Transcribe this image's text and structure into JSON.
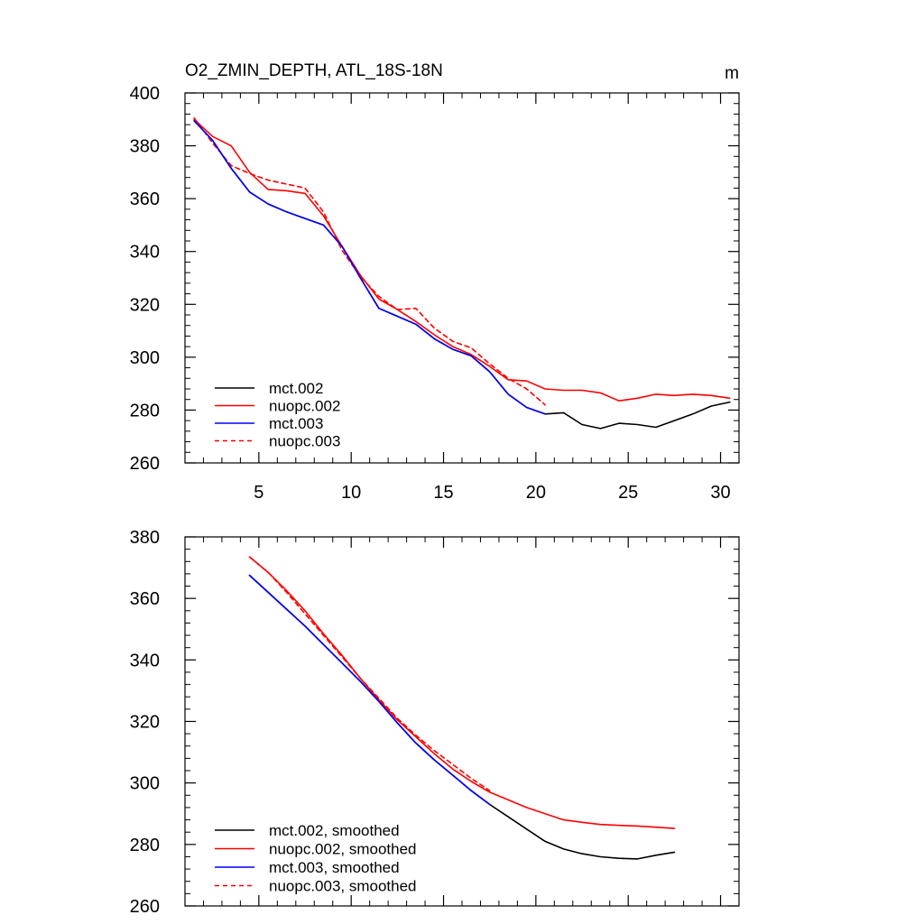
{
  "chart_data": [
    {
      "type": "line",
      "title": "O2_ZMIN_DEPTH, ATL_18S-18N",
      "units": "m",
      "xlim": [
        1,
        31
      ],
      "ylim": [
        260,
        400
      ],
      "x_ticks": [
        5,
        10,
        15,
        20,
        25,
        30
      ],
      "y_ticks": [
        260,
        280,
        300,
        320,
        340,
        360,
        380,
        400
      ],
      "x_tick_labels": [
        "5",
        "10",
        "15",
        "20",
        "25",
        "30"
      ],
      "y_tick_labels": [
        "260",
        "280",
        "300",
        "320",
        "340",
        "360",
        "380",
        "400"
      ],
      "legend_position": "bottom-left",
      "series": [
        {
          "name": "mct.002",
          "color": "#000000",
          "dash": "solid",
          "x": [
            1.5,
            2.5,
            3.5,
            4.5,
            5.5,
            6.5,
            7.5,
            8.5,
            9.5,
            10.5,
            11.5,
            12.5,
            13.5,
            14.5,
            15.5,
            16.5,
            17.5,
            18.5,
            19.5,
            20.5,
            21.5,
            22.5,
            23.5,
            24.5,
            25.5,
            26.5,
            27.5,
            28.5,
            29.5,
            30.5
          ],
          "values": [
            389.5,
            382,
            371.5,
            362.5,
            358,
            355,
            352.5,
            350,
            342,
            330,
            318.5,
            315.5,
            312.5,
            307,
            303,
            300.5,
            294.5,
            286,
            281,
            278.5,
            279,
            274.5,
            273,
            275,
            274.5,
            273.5,
            276,
            278.5,
            281.5,
            283
          ]
        },
        {
          "name": "nuopc.002",
          "color": "#ff0000",
          "dash": "solid",
          "x": [
            1.5,
            2.5,
            3.5,
            4.5,
            5.5,
            6.5,
            7.5,
            8.5,
            9.5,
            10.5,
            11.5,
            12.5,
            13.5,
            14.5,
            15.5,
            16.5,
            17.5,
            18.5,
            19.5,
            20.5,
            21.5,
            22.5,
            23.5,
            24.5,
            25.5,
            26.5,
            27.5,
            28.5,
            29.5,
            30.5
          ],
          "values": [
            390,
            383.5,
            380,
            370,
            363.5,
            363,
            362,
            353.5,
            342,
            331,
            322,
            318,
            313.5,
            308.5,
            304,
            301,
            296.5,
            291.5,
            291,
            288,
            287.5,
            287.5,
            286.5,
            283.5,
            284.5,
            286,
            285.5,
            286,
            285.5,
            284.5
          ]
        },
        {
          "name": "mct.003",
          "color": "#0000ff",
          "dash": "solid",
          "x": [
            1.5,
            2.5,
            3.5,
            4.5,
            5.5,
            6.5,
            7.5,
            8.5,
            9.5,
            10.5,
            11.5,
            12.5,
            13.5,
            14.5,
            15.5,
            16.5,
            17.5,
            18.5,
            19.5,
            20.5
          ],
          "values": [
            389.5,
            382,
            371.5,
            362.5,
            358,
            355,
            352.5,
            350,
            342,
            330,
            318.5,
            315.5,
            312.5,
            307,
            303,
            300.5,
            294.5,
            286,
            281,
            278.5
          ]
        },
        {
          "name": "nuopc.003",
          "color": "#ff0000",
          "dash": "dashed",
          "x": [
            1.5,
            2.5,
            3.5,
            4.5,
            5.5,
            6.5,
            7.5,
            8.5,
            9.5,
            10.5,
            11.5,
            12.5,
            13.5,
            14.5,
            15.5,
            16.5,
            17.5,
            18.5,
            19.5,
            20.5
          ],
          "values": [
            390.5,
            381,
            372.5,
            369.5,
            367,
            365.5,
            364,
            355,
            340.5,
            330.5,
            323,
            318,
            318.5,
            311,
            306,
            303.5,
            297.5,
            292,
            288,
            282
          ]
        }
      ]
    },
    {
      "type": "line",
      "title": "",
      "xlim": [
        1,
        31
      ],
      "ylim": [
        260,
        380
      ],
      "x_ticks": [
        5,
        10,
        15,
        20,
        25,
        30
      ],
      "y_ticks": [
        260,
        280,
        300,
        320,
        340,
        360,
        380
      ],
      "x_tick_labels": [],
      "y_tick_labels": [
        "260",
        "280",
        "300",
        "320",
        "340",
        "360",
        "380"
      ],
      "legend_position": "bottom-left",
      "series": [
        {
          "name": "mct.002, smoothed",
          "color": "#000000",
          "dash": "solid",
          "x": [
            4.5,
            5.5,
            6.5,
            7.5,
            8.5,
            9.5,
            10.5,
            11.5,
            12.5,
            13.5,
            14.5,
            15.5,
            16.5,
            17.5,
            18.5,
            19.5,
            20.5,
            21.5,
            22.5,
            23.5,
            24.5,
            25.5,
            26.5,
            27.5
          ],
          "values": [
            367.5,
            362,
            356.5,
            351,
            345,
            339,
            333,
            326.5,
            319.5,
            313,
            307.5,
            302.5,
            297.5,
            293,
            289,
            285,
            281,
            278.5,
            277,
            276,
            275.5,
            275.3,
            276.5,
            277.5
          ]
        },
        {
          "name": "nuopc.002, smoothed",
          "color": "#ff0000",
          "dash": "solid",
          "x": [
            4.5,
            5.5,
            6.5,
            7.5,
            8.5,
            9.5,
            10.5,
            11.5,
            12.5,
            13.5,
            14.5,
            15.5,
            16.5,
            17.5,
            18.5,
            19.5,
            20.5,
            21.5,
            22.5,
            23.5,
            24.5,
            25.5,
            26.5,
            27.5
          ],
          "values": [
            373.5,
            368.5,
            362.5,
            356,
            348.5,
            341.5,
            334,
            327,
            320.5,
            315,
            309.5,
            304.5,
            300.5,
            297,
            294.5,
            292,
            290,
            288,
            287.2,
            286.5,
            286.2,
            286,
            285.6,
            285.2
          ]
        },
        {
          "name": "mct.003, smoothed",
          "color": "#0000ff",
          "dash": "solid",
          "x": [
            4.5,
            5.5,
            6.5,
            7.5,
            8.5,
            9.5,
            10.5,
            11.5,
            12.5,
            13.5,
            14.5,
            15.5,
            16.5,
            17.5
          ],
          "values": [
            367.5,
            362,
            356.5,
            351,
            345,
            339,
            333,
            326.5,
            319.5,
            313,
            307.5,
            302.5,
            297.5,
            293
          ]
        },
        {
          "name": "nuopc.003, smoothed",
          "color": "#ff0000",
          "dash": "dashed",
          "x": [
            4.5,
            5.5,
            6.5,
            7.5,
            8.5,
            9.5,
            10.5,
            11.5,
            12.5,
            13.5,
            14.5,
            15.5,
            16.5,
            17.5
          ],
          "values": [
            373.5,
            368.5,
            362,
            355,
            348,
            341,
            334,
            327.5,
            321,
            315.5,
            310.5,
            306,
            301.5,
            297.5
          ]
        }
      ]
    }
  ]
}
